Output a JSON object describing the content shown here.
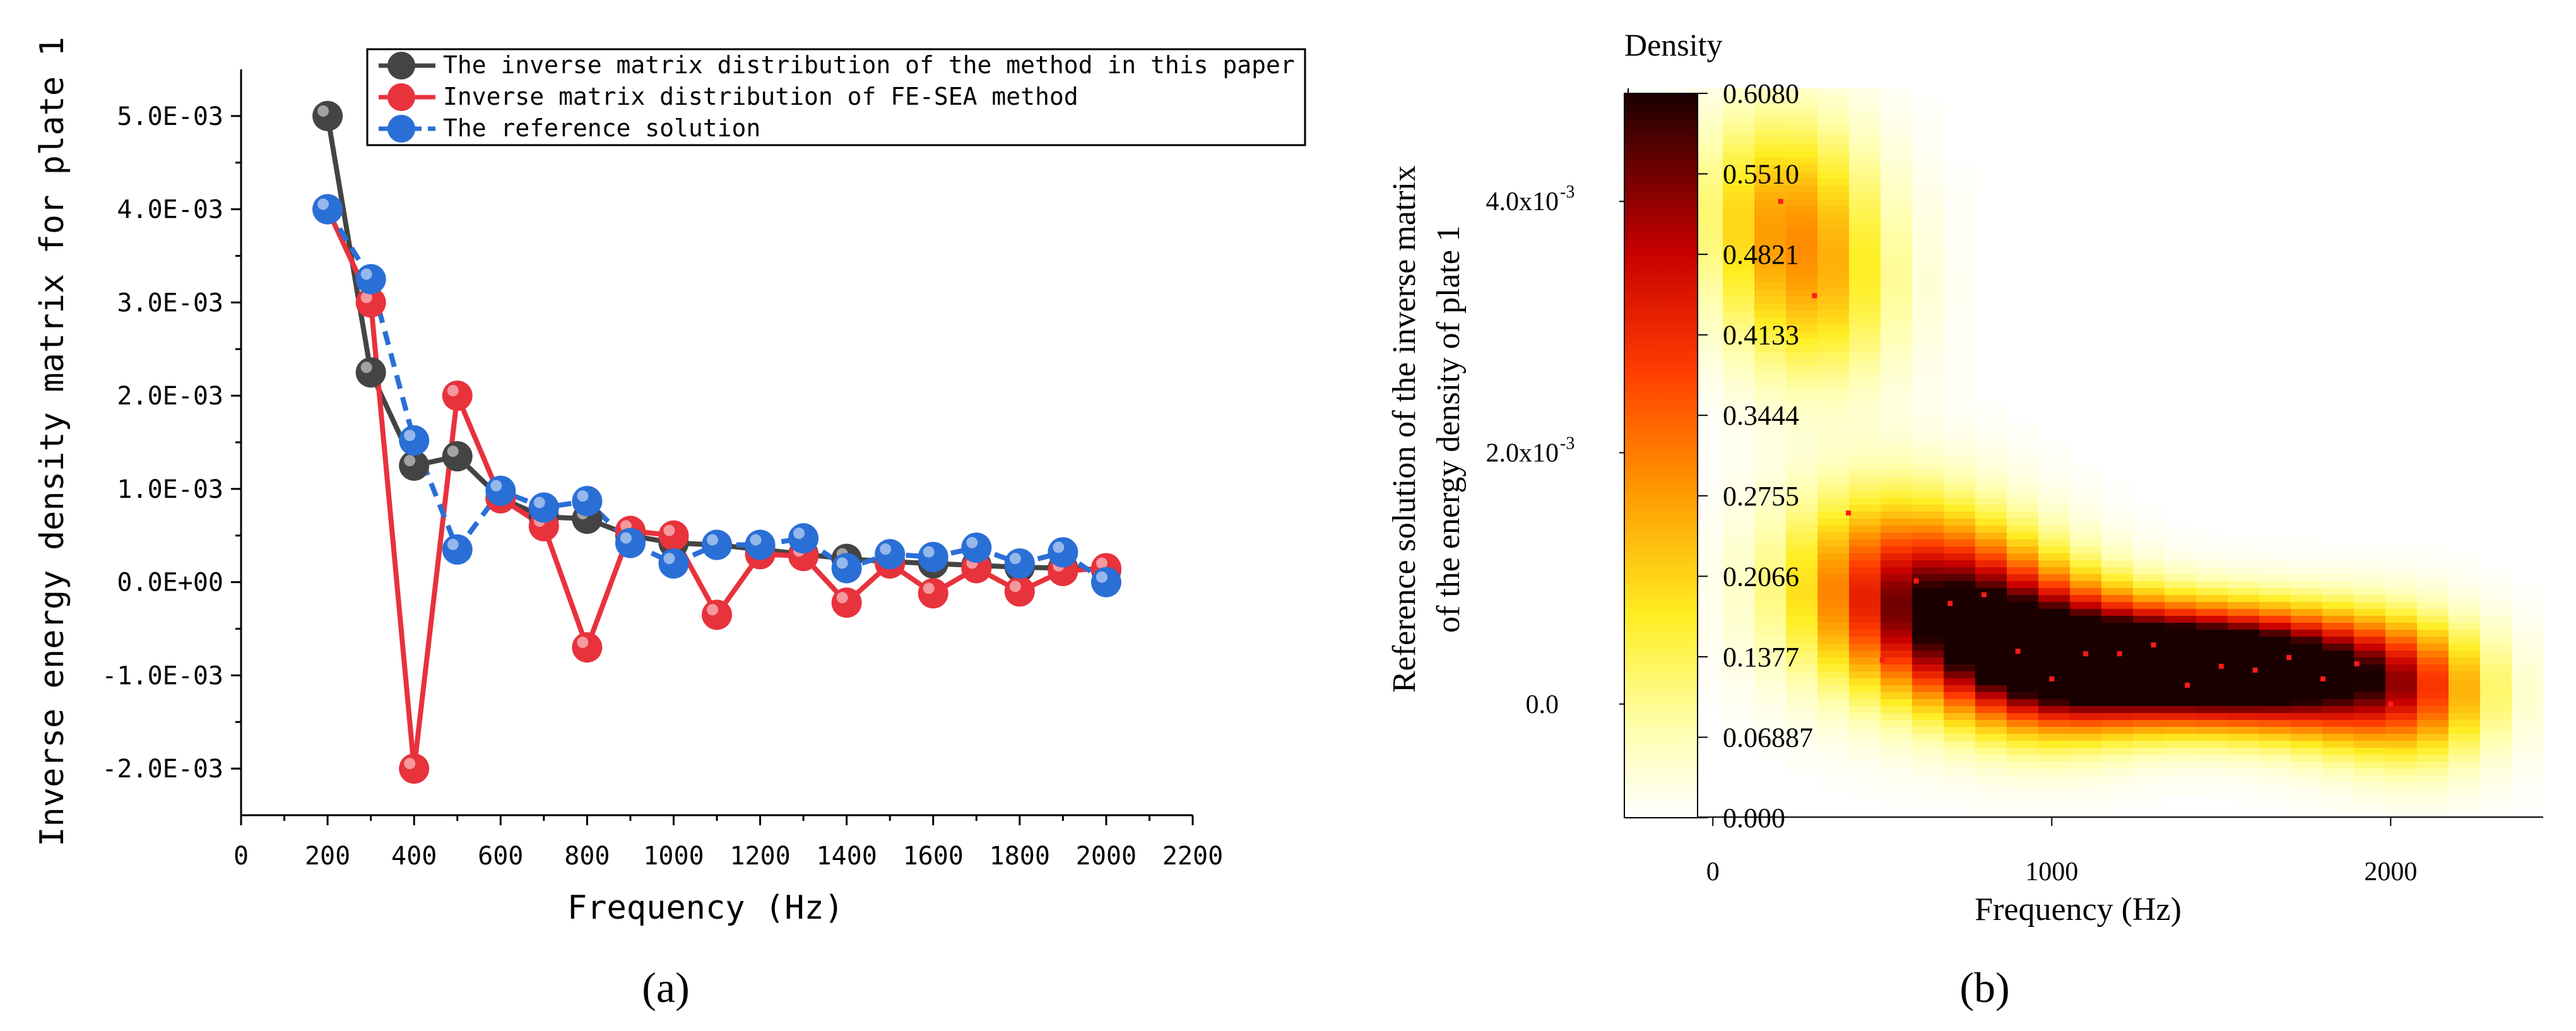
{
  "colors": {
    "black_series": "#444444",
    "red_series": "#e8323c",
    "blue_series": "#2a6fd6",
    "axis": "#000000",
    "legend_border": "#000000"
  },
  "chart_data": [
    {
      "type": "line",
      "panel_label": "(a)",
      "panel_letter": "a",
      "title": "",
      "xlabel": "Frequency (Hz)",
      "ylabel": "Inverse energy density matrix for plate 1",
      "xlim": [
        0,
        2200
      ],
      "ylim": [
        -0.0025,
        0.0055
      ],
      "x_ticks": [
        0,
        200,
        400,
        600,
        800,
        1000,
        1200,
        1400,
        1600,
        1800,
        2000,
        2200
      ],
      "x_tick_labels": [
        "0",
        "200",
        "400",
        "600",
        "800",
        "1000",
        "1200",
        "1400",
        "1600",
        "1800",
        "2000",
        "2200"
      ],
      "y_ticks": [
        -0.002,
        -0.001,
        0.0,
        0.001,
        0.002,
        0.003,
        0.004,
        0.005
      ],
      "y_tick_labels": [
        "-2.0E-03",
        "-1.0E-03",
        "0.0E+00",
        "1.0E-03",
        "2.0E-03",
        "3.0E-03",
        "4.0E-03",
        "5.0E-03"
      ],
      "legend_position": "top-right",
      "series": [
        {
          "name": "The inverse matrix distribution of the method in this paper",
          "color": "#444444",
          "style": "solid",
          "x": [
            200,
            300,
            400,
            500,
            600,
            700,
            800,
            900,
            1000,
            1100,
            1200,
            1300,
            1400,
            1500,
            1600,
            1700,
            1800,
            1900,
            2000
          ],
          "values": [
            0.005,
            0.00225,
            0.00125,
            0.00135,
            0.0009,
            0.0007,
            0.00068,
            0.0005,
            0.00042,
            0.0004,
            0.00035,
            0.0003,
            0.00025,
            0.00022,
            0.0002,
            0.00018,
            0.00016,
            0.00015,
            0.00013
          ]
        },
        {
          "name": "Inverse matrix distribution of FE-SEA method",
          "color": "#e8323c",
          "style": "solid",
          "x": [
            200,
            300,
            400,
            500,
            600,
            700,
            800,
            900,
            1000,
            1100,
            1200,
            1300,
            1400,
            1500,
            1600,
            1700,
            1800,
            1900,
            2000
          ],
          "values": [
            0.004,
            0.003,
            -0.002,
            0.002,
            0.0009,
            0.0006,
            -0.0007,
            0.00055,
            0.0005,
            -0.00035,
            0.0003,
            0.00028,
            -0.00022,
            0.0002,
            -0.00012,
            0.00015,
            -0.0001,
            0.00012,
            0.00015
          ]
        },
        {
          "name": "The reference solution",
          "color": "#2a6fd6",
          "style": "dashed",
          "x": [
            200,
            300,
            400,
            500,
            600,
            700,
            800,
            900,
            1000,
            1100,
            1200,
            1300,
            1400,
            1500,
            1600,
            1700,
            1800,
            1900,
            2000
          ],
          "values": [
            0.004,
            0.00325,
            0.00152,
            0.00035,
            0.00098,
            0.0008,
            0.00087,
            0.00042,
            0.0002,
            0.0004,
            0.0004,
            0.00047,
            0.00015,
            0.0003,
            0.00027,
            0.00037,
            0.0002,
            0.00032,
            0.0
          ]
        }
      ]
    },
    {
      "type": "heatmap",
      "panel_label": "(b)",
      "panel_letter": "b",
      "colorbar_title": "Density",
      "colorbar_ticks": [
        "0.000",
        "0.06887",
        "0.1377",
        "0.2066",
        "0.2755",
        "0.3444",
        "0.4133",
        "0.4821",
        "0.5510",
        "0.6080"
      ],
      "colorbar_range": [
        0,
        0.608
      ],
      "xlabel": "Frequency (Hz)",
      "ylabel_line1": "Reference solution of the inverse matrix",
      "ylabel_line2": "of the energy density of plate 1",
      "xlim": [
        -250,
        2450
      ],
      "ylim": [
        -0.0009,
        0.0049
      ],
      "x_ticks": [
        0,
        1000,
        2000
      ],
      "x_tick_labels": [
        "0",
        "1000",
        "2000"
      ],
      "y_ticks": [
        0.0,
        0.002,
        0.004
      ],
      "y_tick_labels": [
        "0.0",
        "2.0x10",
        "4.0x10"
      ],
      "y_tick_exponents": [
        "",
        "-3",
        "-3"
      ],
      "points": [
        {
          "x": 200,
          "y": 0.004
        },
        {
          "x": 300,
          "y": 0.00325
        },
        {
          "x": 400,
          "y": 0.00152
        },
        {
          "x": 500,
          "y": 0.00035
        },
        {
          "x": 600,
          "y": 0.00098
        },
        {
          "x": 700,
          "y": 0.0008
        },
        {
          "x": 800,
          "y": 0.00087
        },
        {
          "x": 900,
          "y": 0.00042
        },
        {
          "x": 1000,
          "y": 0.0002
        },
        {
          "x": 1100,
          "y": 0.0004
        },
        {
          "x": 1200,
          "y": 0.0004
        },
        {
          "x": 1300,
          "y": 0.00047
        },
        {
          "x": 1400,
          "y": 0.00015
        },
        {
          "x": 1500,
          "y": 0.0003
        },
        {
          "x": 1600,
          "y": 0.00027
        },
        {
          "x": 1700,
          "y": 0.00037
        },
        {
          "x": 1800,
          "y": 0.0002
        },
        {
          "x": 1900,
          "y": 0.00032
        },
        {
          "x": 2000,
          "y": 0.0
        }
      ],
      "density_blobs": [
        {
          "x": 200,
          "y": 0.004,
          "sx": 180,
          "sy": 0.00055,
          "density": 0.2
        },
        {
          "x": 300,
          "y": 0.00325,
          "sx": 180,
          "sy": 0.00055,
          "density": 0.18
        },
        {
          "x": 500,
          "y": 0.00095,
          "sx": 220,
          "sy": 0.00055,
          "density": 0.3
        },
        {
          "x": 750,
          "y": 0.0007,
          "sx": 200,
          "sy": 0.00045,
          "density": 0.42
        },
        {
          "x": 1000,
          "y": 0.00035,
          "sx": 200,
          "sy": 0.0004,
          "density": 0.5
        },
        {
          "x": 1300,
          "y": 0.00032,
          "sx": 230,
          "sy": 0.0003,
          "density": 0.608
        },
        {
          "x": 1600,
          "y": 0.00028,
          "sx": 220,
          "sy": 0.0003,
          "density": 0.55
        },
        {
          "x": 1900,
          "y": 0.00018,
          "sx": 200,
          "sy": 0.00035,
          "density": 0.35
        },
        {
          "x": 2100,
          "y": 5e-05,
          "sx": 160,
          "sy": 0.0004,
          "density": 0.18
        }
      ]
    }
  ]
}
